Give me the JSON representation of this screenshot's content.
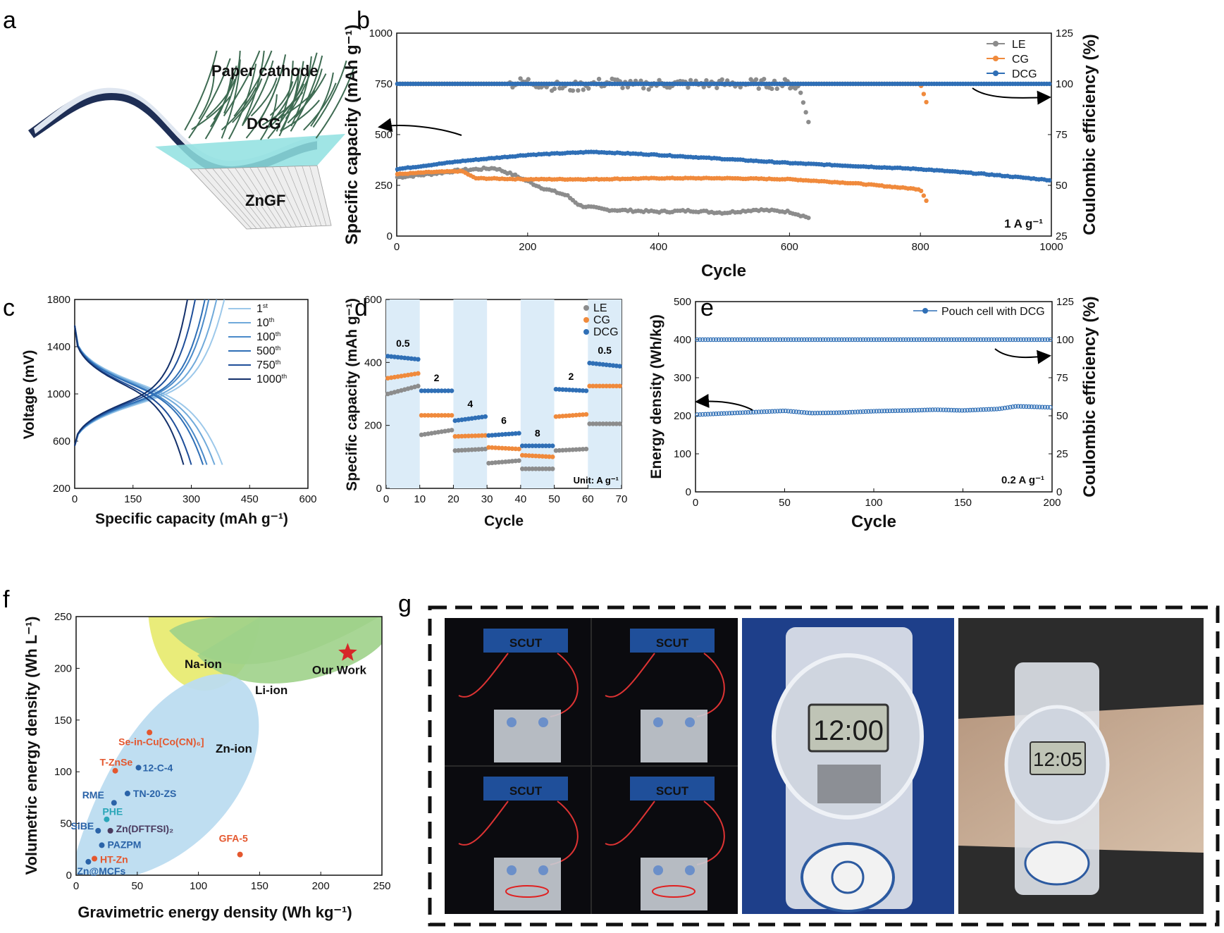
{
  "panel_letters": [
    "a",
    "b",
    "c",
    "d",
    "e",
    "f",
    "g"
  ],
  "panel_a": {
    "labels": [
      "Paper  cathode",
      "DCG",
      "ZnGF"
    ]
  },
  "panel_g": {
    "sign_text": "SCUT",
    "clock_1": "12:00",
    "clock_2": "12:05"
  },
  "colors": {
    "LE": "#8c8c8c",
    "CG": "#f08a3c",
    "DCG": "#2f6fb6",
    "red": "#d62728",
    "napatch": "#e8eb73",
    "lipatch": "#9fd28a",
    "znpatch": "#bcdcf0"
  },
  "chart_data": [
    {
      "id": "b",
      "type": "scatter",
      "xlabel": "Cycle",
      "ylabel": "Specific capacity (mAh g⁻¹)",
      "ylabel_right": "Coulombic efficiency (%)",
      "xlim": [
        0,
        1000
      ],
      "ylim": [
        0,
        1000
      ],
      "ylim_right": [
        25,
        125
      ],
      "xticks": [
        0,
        200,
        400,
        600,
        800,
        1000
      ],
      "yticks": [
        0,
        250,
        500,
        750,
        1000
      ],
      "yticks_right": [
        25,
        50,
        75,
        100,
        125
      ],
      "annotation": "1 A g⁻¹",
      "legend": [
        "LE",
        "CG",
        "DCG"
      ],
      "legend_position": "top-right",
      "series": [
        {
          "name": "LE",
          "x": [
            1,
            50,
            100,
            150,
            180,
            220,
            260,
            280,
            320,
            360,
            400,
            450,
            500,
            550,
            600,
            630
          ],
          "y": [
            290,
            305,
            325,
            335,
            300,
            240,
            200,
            150,
            130,
            125,
            120,
            125,
            115,
            130,
            120,
            90
          ]
        },
        {
          "name": "CG",
          "x": [
            1,
            50,
            100,
            120,
            200,
            300,
            400,
            500,
            600,
            700,
            800,
            810
          ],
          "y": [
            305,
            315,
            320,
            285,
            280,
            280,
            285,
            285,
            280,
            260,
            230,
            170
          ]
        },
        {
          "name": "DCG",
          "x": [
            1,
            100,
            200,
            300,
            400,
            500,
            600,
            700,
            800,
            900,
            1000
          ],
          "y": [
            330,
            370,
            400,
            415,
            400,
            380,
            360,
            345,
            330,
            305,
            275
          ]
        },
        {
          "name": "LE CE",
          "x": [
            1,
            100,
            170,
            200,
            260,
            300,
            330,
            360,
            400,
            450,
            500,
            550,
            600,
            615,
            630
          ],
          "y": [
            100,
            100,
            100,
            101,
            98,
            100,
            101,
            99,
            100,
            100,
            100,
            100,
            100,
            98,
            80
          ]
        },
        {
          "name": "CG CE",
          "x": [
            1,
            200,
            400,
            600,
            700,
            800,
            805,
            810
          ],
          "y": [
            100,
            100,
            100,
            100,
            100,
            100,
            95,
            90
          ]
        },
        {
          "name": "DCG CE",
          "x": [
            1,
            1000
          ],
          "y": [
            100,
            100
          ]
        }
      ]
    },
    {
      "id": "c",
      "type": "line",
      "xlabel": "Specific capacity (mAh g⁻¹)",
      "ylabel": "Voltage (mV)",
      "xlim": [
        0,
        600
      ],
      "ylim": [
        200,
        1800
      ],
      "xticks": [
        0,
        150,
        300,
        450,
        600
      ],
      "yticks": [
        200,
        600,
        1000,
        1400,
        1800
      ],
      "legend": [
        {
          "base": "1",
          "sup": "st"
        },
        {
          "base": "10",
          "sup": "th"
        },
        {
          "base": "100",
          "sup": "th"
        },
        {
          "base": "500",
          "sup": "th"
        },
        {
          "base": "750",
          "sup": "th"
        },
        {
          "base": "1000",
          "sup": "th"
        }
      ],
      "legend_position": "top-right",
      "discharge_end": [
        380,
        360,
        340,
        330,
        300,
        280
      ],
      "charge_end": [
        385,
        365,
        345,
        335,
        310,
        290
      ],
      "series_colors": [
        "#9cc8ea",
        "#6fa9da",
        "#4a8ac9",
        "#2f6fb6",
        "#1f4f9a",
        "#13306b"
      ]
    },
    {
      "id": "d",
      "type": "scatter",
      "xlabel": "Cycle",
      "ylabel": "Specific capacity (mAh g⁻¹)",
      "xlim": [
        0,
        70
      ],
      "ylim": [
        0,
        600
      ],
      "xticks": [
        0,
        10,
        20,
        30,
        40,
        50,
        60,
        70
      ],
      "yticks": [
        0,
        200,
        400,
        600
      ],
      "annotation": "Unit: A g⁻¹",
      "legend": [
        "LE",
        "CG",
        "DCG"
      ],
      "legend_position": "top-right",
      "rate_labels": [
        "0.5",
        "2",
        "4",
        "6",
        "8",
        "2",
        "0.5"
      ],
      "segments": [
        {
          "start": 1,
          "end": 10,
          "LE": [
            300,
            325
          ],
          "CG": [
            350,
            365
          ],
          "DCG": [
            420,
            410
          ]
        },
        {
          "start": 11,
          "end": 20,
          "LE": [
            170,
            185
          ],
          "CG": [
            232,
            232
          ],
          "DCG": [
            310,
            310
          ]
        },
        {
          "start": 21,
          "end": 30,
          "LE": [
            120,
            125
          ],
          "CG": [
            165,
            168
          ],
          "DCG": [
            215,
            228
          ]
        },
        {
          "start": 31,
          "end": 40,
          "LE": [
            80,
            88
          ],
          "CG": [
            130,
            125
          ],
          "DCG": [
            168,
            175
          ]
        },
        {
          "start": 41,
          "end": 50,
          "LE": [
            62,
            62
          ],
          "CG": [
            105,
            100
          ],
          "DCG": [
            135,
            135
          ]
        },
        {
          "start": 51,
          "end": 60,
          "LE": [
            120,
            125
          ],
          "CG": [
            228,
            235
          ],
          "DCG": [
            315,
            310
          ]
        },
        {
          "start": 61,
          "end": 70,
          "LE": [
            205,
            205
          ],
          "CG": [
            325,
            325
          ],
          "DCG": [
            398,
            388
          ]
        }
      ]
    },
    {
      "id": "e",
      "type": "scatter",
      "xlabel": "Cycle",
      "ylabel": "Energy density (Wh/kg)",
      "ylabel_right": "Coulombic efficiency (%)",
      "xlim": [
        0,
        200
      ],
      "ylim": [
        0,
        500
      ],
      "ylim_right": [
        0,
        125
      ],
      "xticks": [
        0,
        50,
        100,
        150,
        200
      ],
      "yticks": [
        0,
        100,
        200,
        300,
        400,
        500
      ],
      "yticks_right": [
        0,
        25,
        50,
        75,
        100,
        125
      ],
      "annotation": "0.2 A g⁻¹",
      "legend": [
        "Pouch cell with DCG"
      ],
      "legend_position": "top-right",
      "series": [
        {
          "name": "Energy density",
          "x": [
            1,
            25,
            50,
            65,
            80,
            100,
            120,
            135,
            150,
            170,
            180,
            200
          ],
          "y": [
            203,
            208,
            213,
            207,
            208,
            212,
            214,
            216,
            214,
            218,
            225,
            222
          ]
        },
        {
          "name": "CE",
          "x": [
            1,
            200
          ],
          "y": [
            100,
            100
          ]
        }
      ]
    },
    {
      "id": "f",
      "type": "scatter",
      "xlabel": "Gravimetric energy density (Wh kg⁻¹)",
      "ylabel": "Volumetric energy density (Wh L⁻¹)",
      "xlim": [
        0,
        250
      ],
      "ylim": [
        0,
        250
      ],
      "xticks": [
        0,
        50,
        100,
        150,
        200,
        250
      ],
      "yticks": [
        0,
        50,
        100,
        150,
        200,
        250
      ],
      "regions": [
        "Na-ion",
        "Li-ion",
        "Zn-ion"
      ],
      "highlight": {
        "label": "Our Work",
        "x": 222,
        "y": 215
      },
      "points": [
        {
          "label": "Se-in-Cu[Co(CN)₆]",
          "x": 60,
          "y": 138,
          "group": "orange"
        },
        {
          "label": "T-ZnSe",
          "x": 32,
          "y": 101,
          "group": "orange"
        },
        {
          "label": "12-C-4",
          "x": 51,
          "y": 104,
          "group": "blue"
        },
        {
          "label": "RME",
          "x": 31,
          "y": 70,
          "group": "blue"
        },
        {
          "label": "TN-20-ZS",
          "x": 42,
          "y": 79,
          "group": "blue"
        },
        {
          "label": "PHE",
          "x": 25,
          "y": 54,
          "group": "teal"
        },
        {
          "label": "SiBE",
          "x": 18,
          "y": 43,
          "group": "blue"
        },
        {
          "label": "Zn(DFTFSI)₂",
          "x": 28,
          "y": 43,
          "group": "purple"
        },
        {
          "label": "PAZPM",
          "x": 21,
          "y": 29,
          "group": "blue"
        },
        {
          "label": "GFA-5",
          "x": 134,
          "y": 20,
          "group": "orange"
        },
        {
          "label": "HT-Zn",
          "x": 15,
          "y": 16,
          "group": "orange"
        },
        {
          "label": "Zn@MCFs",
          "x": 10,
          "y": 13,
          "group": "blue"
        }
      ]
    }
  ]
}
